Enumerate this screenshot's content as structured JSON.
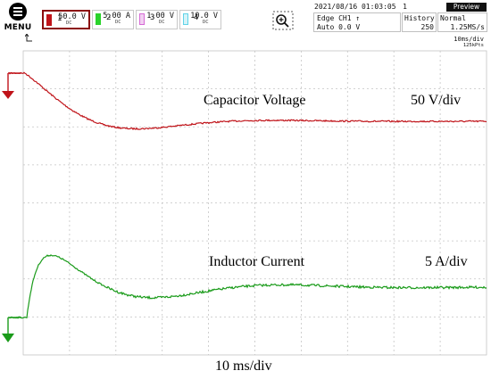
{
  "menu": {
    "label": "MENU"
  },
  "channels": [
    {
      "number": "1",
      "scale": "50.0 V",
      "coupling": "DC",
      "color": "#c0141a",
      "active": true
    },
    {
      "number": "2",
      "scale": "5.00 A",
      "coupling": "DC",
      "color": "#2bd32b",
      "active": false
    },
    {
      "number": "3",
      "scale": "1.00 V",
      "coupling": "DC",
      "color": "#d66ad6",
      "active": false
    },
    {
      "number": "4",
      "scale": "10.0 V",
      "coupling": "DC",
      "color": "#5fd3e8",
      "active": false
    }
  ],
  "zoom_icon": "magnifier-plus-icon",
  "status": {
    "datetime": "2021/08/16 01:03:05",
    "count": "1",
    "preview_label": "Preview"
  },
  "trigger": {
    "line1": "Edge CH1 ↑",
    "line2": "Auto 0.0 V"
  },
  "history": {
    "label": "History",
    "value": "250"
  },
  "acquisition": {
    "mode": "Normal",
    "rate": "1.25MS/s"
  },
  "timebase": {
    "per_div": "10ms/div",
    "points": "125kPts"
  },
  "trigger_icon": "trigger-position-icon",
  "annotations": {
    "capacitor_label": "Capacitor Voltage",
    "capacitor_scale": "50 V/div",
    "inductor_label": "Inductor Current",
    "inductor_scale": "5 A/div",
    "time_scale": "10 ms/div"
  },
  "traces": {
    "ch1_color": "#c0141a",
    "ch2_color": "#1a9b1a",
    "grid_color": "#c4c4c4"
  }
}
